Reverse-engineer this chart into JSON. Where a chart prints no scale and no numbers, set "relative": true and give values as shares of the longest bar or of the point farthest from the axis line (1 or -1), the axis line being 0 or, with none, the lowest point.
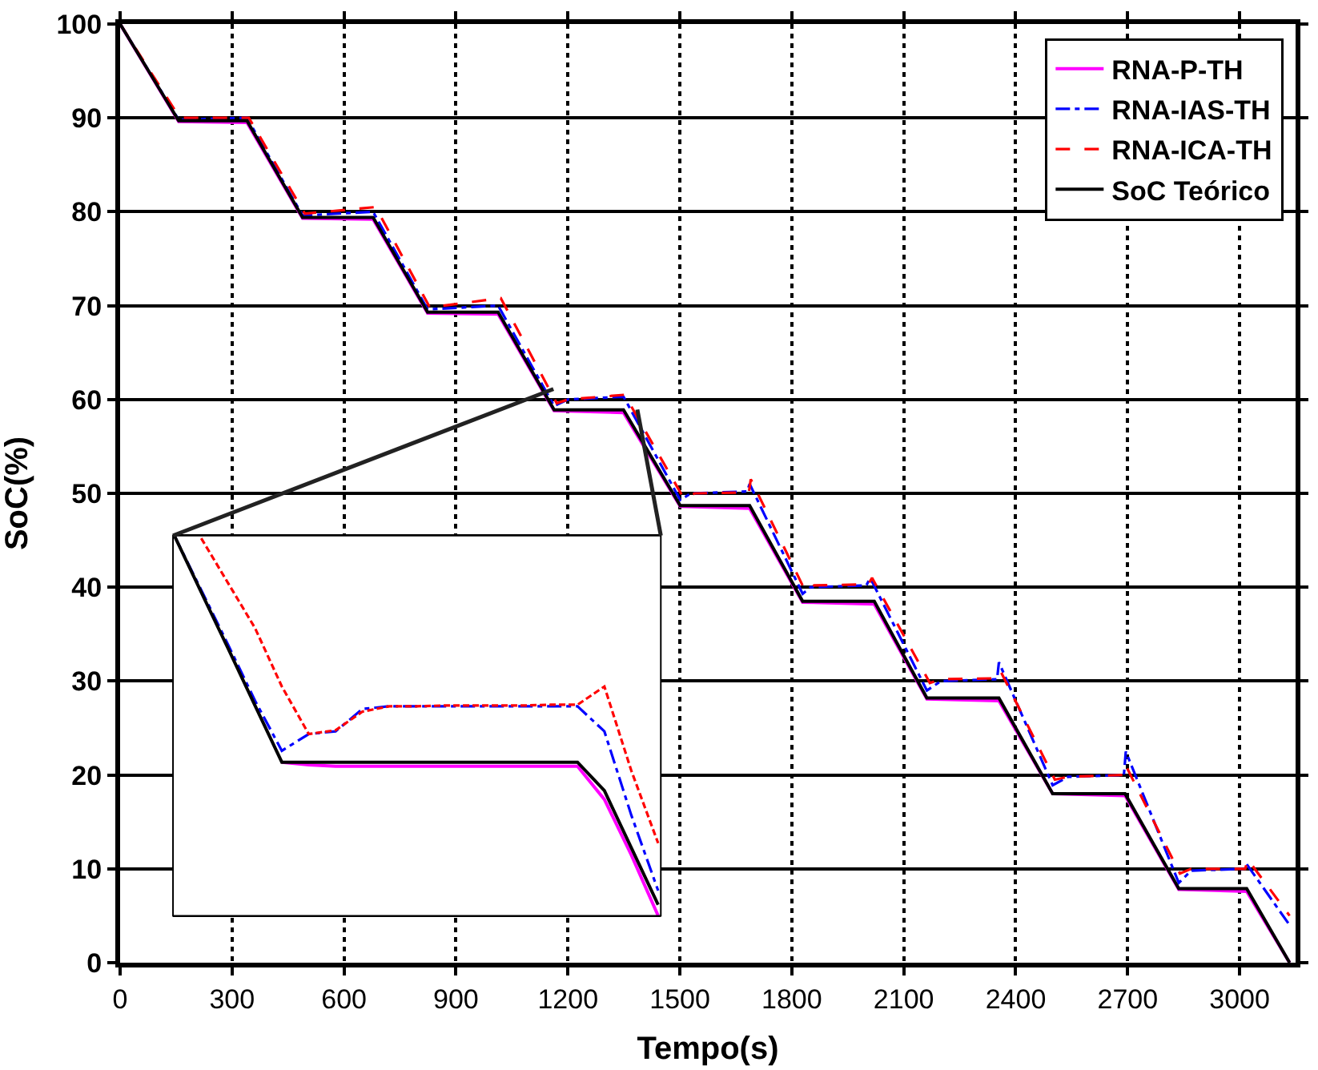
{
  "chart_data": [
    {
      "type": "line",
      "xlabel": "Tempo(s)",
      "ylabel": "SoC(%)",
      "xlim": [
        0,
        3150
      ],
      "ylim": [
        0,
        100
      ],
      "xticks": [
        0,
        300,
        600,
        900,
        1200,
        1500,
        1800,
        2100,
        2400,
        2700,
        3000
      ],
      "yticks": [
        0,
        10,
        20,
        30,
        40,
        50,
        60,
        70,
        80,
        90,
        100
      ],
      "grid": true,
      "legend": "top right",
      "marker": "none",
      "series": [
        {
          "name": "RNA-P-TH",
          "color": "#ff00ff",
          "line_style": "solid",
          "x": [
            0,
            157,
            340,
            489,
            678,
            824,
            1013,
            1163,
            1349,
            1501,
            1687,
            1829,
            2021,
            2162,
            2355,
            2499,
            2693,
            2837,
            3019,
            3134
          ],
          "values": [
            100,
            89.6,
            89.5,
            79.3,
            79.2,
            69.2,
            69.1,
            58.8,
            58.6,
            48.6,
            48.4,
            38.4,
            38.2,
            28.1,
            27.9,
            18.0,
            17.8,
            7.8,
            7.6,
            0
          ]
        },
        {
          "name": "RNA-IAS-TH",
          "color": "#0000ff",
          "line_style": "dashdot",
          "x": [
            0,
            157,
            340,
            489,
            678,
            824,
            1013,
            1163,
            1200,
            1349,
            1501,
            1530,
            1680,
            1687,
            1829,
            1850,
            2000,
            2010,
            2162,
            2200,
            2350,
            2355,
            2499,
            2540,
            2690,
            2695,
            2837,
            2870,
            3010,
            3019,
            3134
          ],
          "values": [
            100,
            89.8,
            90,
            79.6,
            80,
            69.6,
            70,
            59.3,
            60,
            60.3,
            49.3,
            50,
            50.2,
            51,
            39.3,
            40,
            40.2,
            41,
            29,
            30,
            30.2,
            32,
            18.9,
            19.8,
            20,
            22.5,
            8.5,
            9.8,
            10,
            10.5,
            4
          ]
        },
        {
          "name": "RNA-ICA-TH",
          "color": "#ff0000",
          "line_style": "dashed",
          "x": [
            0,
            160,
            345,
            495,
            685,
            830,
            1020,
            1170,
            1200,
            1352,
            1510,
            1540,
            1685,
            1690,
            1835,
            1860,
            2005,
            2015,
            2170,
            2200,
            2350,
            2360,
            2505,
            2540,
            2690,
            2695,
            2840,
            2870,
            3015,
            3022,
            3134
          ],
          "values": [
            100,
            90,
            90,
            79.8,
            80.5,
            69.8,
            70.8,
            59.6,
            60,
            60.5,
            49.5,
            50,
            50.1,
            51.5,
            39.7,
            40.2,
            40.3,
            41,
            29.8,
            30.2,
            30.3,
            31,
            19.5,
            19.8,
            20,
            21,
            9.5,
            10,
            10,
            11,
            5
          ]
        },
        {
          "name": "SoC Teórico",
          "color": "#000000",
          "line_style": "solid",
          "x": [
            0,
            157,
            340,
            489,
            678,
            824,
            1013,
            1163,
            1349,
            1501,
            1687,
            1829,
            2021,
            2162,
            2355,
            2499,
            2693,
            2837,
            3019,
            3134
          ],
          "values": [
            100,
            89.7,
            89.7,
            79.4,
            79.4,
            69.3,
            69.3,
            58.9,
            58.9,
            48.7,
            48.7,
            38.5,
            38.5,
            28.2,
            28.2,
            18.0,
            18.0,
            7.9,
            7.9,
            0
          ]
        }
      ]
    },
    {
      "type": "line",
      "relative": true,
      "tick_labels": false,
      "marker": "none",
      "categories": [
        null,
        null,
        null,
        null,
        null,
        null,
        null,
        null,
        null,
        null,
        null,
        null,
        null,
        null,
        null,
        null,
        null,
        null,
        null
      ],
      "series": [
        {
          "color": "#ff00ff",
          "line_style": "solid",
          "values": [
            null,
            null,
            null,
            null,
            0.404,
            0.397,
            0.393,
            0.393,
            0.393,
            0.393,
            0.393,
            0.393,
            0.393,
            0.393,
            0.393,
            0.393,
            0.306,
            0.16,
            0.0
          ]
        },
        {
          "color": "#0000ff",
          "line_style": "dashdot",
          "values": [
            1.0,
            0.857,
            0.713,
            0.566,
            0.434,
            0.478,
            0.485,
            0.544,
            0.551,
            0.551,
            0.551,
            0.551,
            0.551,
            0.551,
            0.551,
            0.551,
            0.485,
            0.265,
            0.066
          ]
        },
        {
          "color": "#ff0000",
          "line_style": "dashed",
          "values": [
            null,
            0.993,
            0.875,
            0.757,
            0.603,
            0.478,
            0.488,
            0.537,
            0.551,
            0.551,
            0.553,
            0.553,
            0.553,
            0.553,
            0.555,
            0.555,
            0.603,
            0.382,
            0.191
          ]
        },
        {
          "color": "#000000",
          "line_style": "solid",
          "values": [
            1.0,
            0.851,
            0.703,
            0.553,
            0.404,
            0.404,
            0.404,
            0.404,
            0.404,
            0.404,
            0.404,
            0.404,
            0.404,
            0.404,
            0.404,
            0.404,
            0.329,
            0.179,
            0.029
          ]
        }
      ]
    }
  ]
}
